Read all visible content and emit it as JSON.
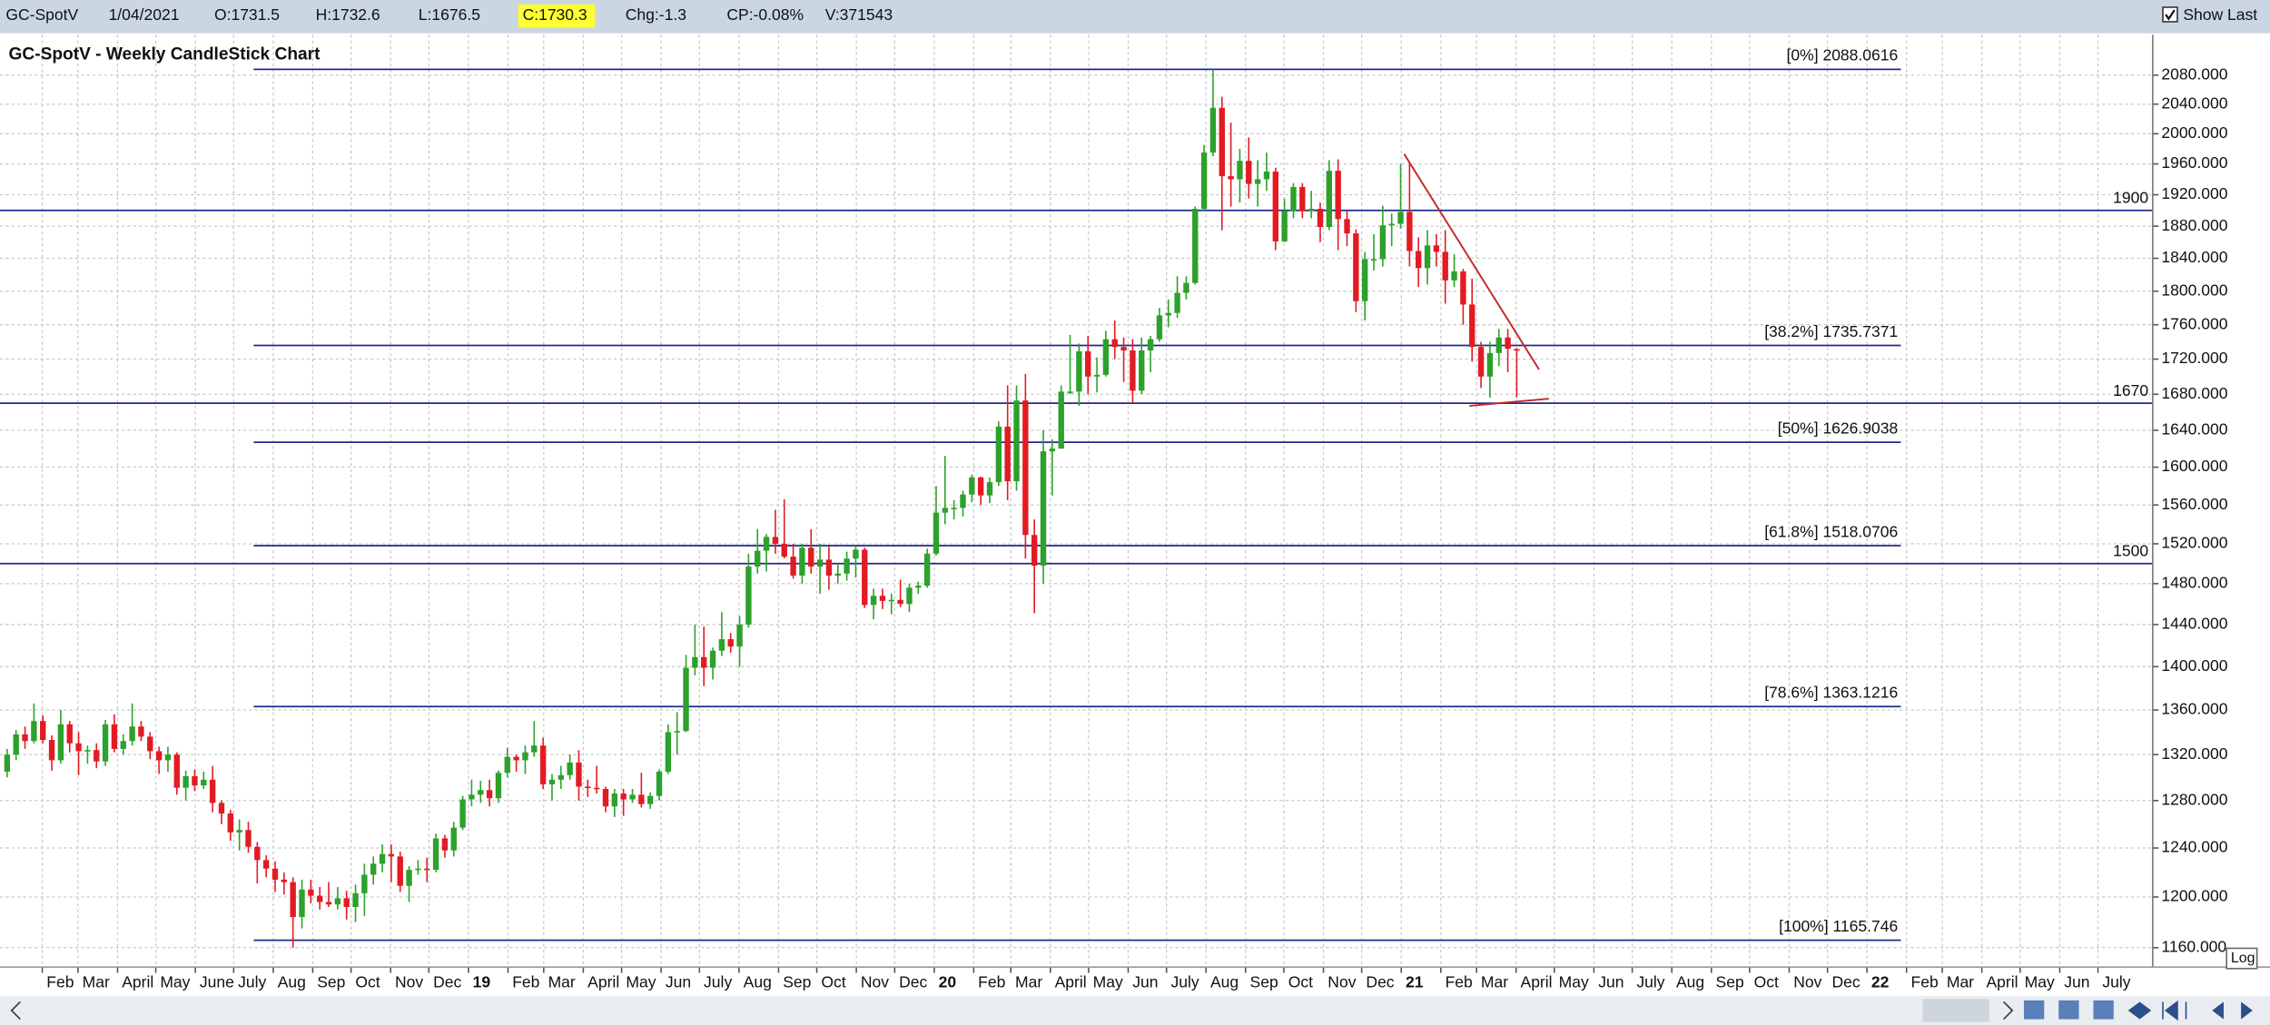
{
  "toolbar": {
    "symbol": "GC-SpotV",
    "date": "1/04/2021",
    "open": "O:1731.5",
    "high": "H:1732.6",
    "low": "L:1676.5",
    "close": "C:1730.3",
    "change": "Chg:-1.3",
    "change_percent": "CP:-0.08%",
    "volume": "V:371543",
    "show_last": "Show Last",
    "scale_mode": "Log"
  },
  "chart_data": {
    "type": "candlestick",
    "title": "GC-SpotV - Weekly CandleStick Chart",
    "log_scale": true,
    "grid": true,
    "colors": {
      "up": "#2ca12c",
      "down": "#e21b23",
      "level": "#1f2a8a",
      "level_text": "#3434a0",
      "trend": "#c0282d"
    },
    "ylim": [
      1145,
      2137
    ],
    "xlim": [
      -0.8,
      240.2
    ],
    "yticks": [
      {
        "value": 1160,
        "label": "1160.000"
      },
      {
        "value": 1200,
        "label": "1200.000"
      },
      {
        "value": 1240,
        "label": "1240.000"
      },
      {
        "value": 1280,
        "label": "1280.000"
      },
      {
        "value": 1320,
        "label": "1320.000"
      },
      {
        "value": 1360,
        "label": "1360.000"
      },
      {
        "value": 1400,
        "label": "1400.000"
      },
      {
        "value": 1440,
        "label": "1440.000"
      },
      {
        "value": 1480,
        "label": "1480.000"
      },
      {
        "value": 1520,
        "label": "1520.000"
      },
      {
        "value": 1560,
        "label": "1560.000"
      },
      {
        "value": 1600,
        "label": "1600.000"
      },
      {
        "value": 1640,
        "label": "1640.000"
      },
      {
        "value": 1680,
        "label": "1680.000"
      },
      {
        "value": 1720,
        "label": "1720.000"
      },
      {
        "value": 1760,
        "label": "1760.000"
      },
      {
        "value": 1800,
        "label": "1800.000"
      },
      {
        "value": 1840,
        "label": "1840.000"
      },
      {
        "value": 1880,
        "label": "1880.000"
      },
      {
        "value": 1920,
        "label": "1920.000"
      },
      {
        "value": 1960,
        "label": "1960.000"
      },
      {
        "value": 2000,
        "label": "2000.000"
      },
      {
        "value": 2040,
        "label": "2040.000"
      },
      {
        "value": 2080,
        "label": "2080.000"
      }
    ],
    "xticks": [
      {
        "value": 3.93,
        "label": "Feb"
      },
      {
        "value": 7.93,
        "label": "Mar"
      },
      {
        "value": 12.36,
        "label": "April"
      },
      {
        "value": 16.64,
        "label": "May"
      },
      {
        "value": 21.07,
        "label": "June"
      },
      {
        "value": 25.36,
        "label": "July"
      },
      {
        "value": 29.79,
        "label": "Aug"
      },
      {
        "value": 34.21,
        "label": "Sep"
      },
      {
        "value": 38.5,
        "label": "Oct"
      },
      {
        "value": 42.93,
        "label": "Nov"
      },
      {
        "value": 47.21,
        "label": "Dec"
      },
      {
        "value": 51.64,
        "label": "19"
      },
      {
        "value": 56.07,
        "label": "Feb"
      },
      {
        "value": 60.07,
        "label": "Mar"
      },
      {
        "value": 64.5,
        "label": "April"
      },
      {
        "value": 68.79,
        "label": "May"
      },
      {
        "value": 73.21,
        "label": "Jun"
      },
      {
        "value": 77.5,
        "label": "July"
      },
      {
        "value": 81.93,
        "label": "Aug"
      },
      {
        "value": 86.36,
        "label": "Sep"
      },
      {
        "value": 90.64,
        "label": "Oct"
      },
      {
        "value": 95.07,
        "label": "Nov"
      },
      {
        "value": 99.36,
        "label": "Dec"
      },
      {
        "value": 103.79,
        "label": "20"
      },
      {
        "value": 108.21,
        "label": "Feb"
      },
      {
        "value": 112.36,
        "label": "Mar"
      },
      {
        "value": 116.79,
        "label": "April"
      },
      {
        "value": 121.07,
        "label": "May"
      },
      {
        "value": 125.5,
        "label": "Jun"
      },
      {
        "value": 129.79,
        "label": "July"
      },
      {
        "value": 134.21,
        "label": "Aug"
      },
      {
        "value": 138.64,
        "label": "Sep"
      },
      {
        "value": 142.93,
        "label": "Oct"
      },
      {
        "value": 147.36,
        "label": "Nov"
      },
      {
        "value": 151.64,
        "label": "Dec"
      },
      {
        "value": 156.07,
        "label": "21"
      },
      {
        "value": 160.5,
        "label": "Feb"
      },
      {
        "value": 164.5,
        "label": "Mar"
      },
      {
        "value": 168.93,
        "label": "April"
      },
      {
        "value": 173.21,
        "label": "May"
      },
      {
        "value": 177.64,
        "label": "Jun"
      },
      {
        "value": 181.93,
        "label": "July"
      },
      {
        "value": 186.36,
        "label": "Aug"
      },
      {
        "value": 190.79,
        "label": "Sep"
      },
      {
        "value": 195.07,
        "label": "Oct"
      },
      {
        "value": 199.5,
        "label": "Nov"
      },
      {
        "value": 203.79,
        "label": "Dec"
      },
      {
        "value": 208.21,
        "label": "22"
      },
      {
        "value": 212.64,
        "label": "Feb"
      },
      {
        "value": 216.64,
        "label": "Mar"
      },
      {
        "value": 221.07,
        "label": "April"
      },
      {
        "value": 225.36,
        "label": "May"
      },
      {
        "value": 229.79,
        "label": "Jun"
      },
      {
        "value": 234.07,
        "label": "July"
      }
    ],
    "hlines": [
      1900,
      1670,
      1500
    ],
    "fibonacci": {
      "x": [
        27.6,
        212
      ],
      "levels": [
        {
          "value": 2088.0616,
          "label": "[0%] 2088.0616"
        },
        {
          "value": 1735.7371,
          "label": "[38.2%] 1735.7371"
        },
        {
          "value": 1626.9038,
          "label": "[50%] 1626.9038"
        },
        {
          "value": 1518.0706,
          "label": "[61.8%] 1518.0706"
        },
        {
          "value": 1363.1216,
          "label": "[78.6%] 1363.1216"
        },
        {
          "value": 1165.746,
          "label": "[100%] 1165.746"
        }
      ]
    },
    "trendlines": [
      {
        "x": [
          156.4,
          171.5
        ],
        "y": [
          1973,
          1708
        ]
      },
      {
        "x": [
          163.7,
          172.6
        ],
        "y": [
          1667,
          1675
        ]
      }
    ],
    "candles": [
      [
        1305,
        1325,
        1300,
        1320
      ],
      [
        1320,
        1342,
        1315,
        1338
      ],
      [
        1338,
        1345,
        1325,
        1332
      ],
      [
        1332,
        1366,
        1330,
        1350
      ],
      [
        1350,
        1355,
        1330,
        1333
      ],
      [
        1333,
        1337,
        1306,
        1315
      ],
      [
        1315,
        1360,
        1312,
        1347
      ],
      [
        1347,
        1350,
        1322,
        1330
      ],
      [
        1330,
        1340,
        1302,
        1323
      ],
      [
        1323,
        1328,
        1312,
        1324
      ],
      [
        1324,
        1330,
        1308,
        1314
      ],
      [
        1314,
        1351,
        1310,
        1347
      ],
      [
        1347,
        1356,
        1322,
        1325
      ],
      [
        1325,
        1338,
        1320,
        1332
      ],
      [
        1332,
        1366,
        1328,
        1345
      ],
      [
        1345,
        1350,
        1332,
        1336
      ],
      [
        1336,
        1340,
        1316,
        1323
      ],
      [
        1323,
        1327,
        1303,
        1315
      ],
      [
        1315,
        1327,
        1305,
        1320
      ],
      [
        1320,
        1322,
        1285,
        1291
      ],
      [
        1291,
        1306,
        1280,
        1301
      ],
      [
        1301,
        1307,
        1288,
        1293
      ],
      [
        1293,
        1305,
        1290,
        1298
      ],
      [
        1298,
        1310,
        1270,
        1278
      ],
      [
        1278,
        1280,
        1260,
        1269
      ],
      [
        1269,
        1272,
        1246,
        1253
      ],
      [
        1253,
        1264,
        1238,
        1255
      ],
      [
        1255,
        1262,
        1236,
        1241
      ],
      [
        1241,
        1245,
        1211,
        1230
      ],
      [
        1230,
        1234,
        1216,
        1223
      ],
      [
        1223,
        1229,
        1204,
        1214
      ],
      [
        1214,
        1220,
        1202,
        1212
      ],
      [
        1212,
        1216,
        1160,
        1184
      ],
      [
        1184,
        1214,
        1175,
        1206
      ],
      [
        1206,
        1214,
        1195,
        1201
      ],
      [
        1201,
        1208,
        1190,
        1196
      ],
      [
        1196,
        1212,
        1192,
        1194
      ],
      [
        1194,
        1208,
        1190,
        1199
      ],
      [
        1199,
        1205,
        1182,
        1192
      ],
      [
        1192,
        1210,
        1180,
        1203
      ],
      [
        1203,
        1227,
        1185,
        1218
      ],
      [
        1218,
        1233,
        1210,
        1227
      ],
      [
        1227,
        1243,
        1220,
        1235
      ],
      [
        1235,
        1243,
        1212,
        1233
      ],
      [
        1233,
        1237,
        1204,
        1209
      ],
      [
        1209,
        1225,
        1196,
        1222
      ],
      [
        1222,
        1230,
        1218,
        1223
      ],
      [
        1223,
        1232,
        1212,
        1222
      ],
      [
        1222,
        1252,
        1220,
        1248
      ],
      [
        1248,
        1251,
        1232,
        1238
      ],
      [
        1238,
        1262,
        1233,
        1257
      ],
      [
        1257,
        1284,
        1255,
        1281
      ],
      [
        1281,
        1298,
        1275,
        1285
      ],
      [
        1285,
        1297,
        1278,
        1289
      ],
      [
        1289,
        1298,
        1275,
        1282
      ],
      [
        1282,
        1306,
        1278,
        1304
      ],
      [
        1304,
        1326,
        1300,
        1318
      ],
      [
        1318,
        1320,
        1305,
        1315
      ],
      [
        1315,
        1328,
        1303,
        1322
      ],
      [
        1322,
        1350,
        1318,
        1328
      ],
      [
        1328,
        1335,
        1290,
        1294
      ],
      [
        1294,
        1303,
        1280,
        1298
      ],
      [
        1298,
        1310,
        1290,
        1302
      ],
      [
        1302,
        1320,
        1298,
        1313
      ],
      [
        1313,
        1324,
        1280,
        1292
      ],
      [
        1292,
        1298,
        1283,
        1291
      ],
      [
        1291,
        1310,
        1286,
        1290
      ],
      [
        1290,
        1292,
        1270,
        1275
      ],
      [
        1275,
        1290,
        1266,
        1286
      ],
      [
        1286,
        1290,
        1267,
        1281
      ],
      [
        1281,
        1290,
        1278,
        1285
      ],
      [
        1285,
        1304,
        1274,
        1277
      ],
      [
        1277,
        1287,
        1273,
        1284
      ],
      [
        1284,
        1307,
        1280,
        1305
      ],
      [
        1305,
        1347,
        1303,
        1340
      ],
      [
        1340,
        1358,
        1320,
        1341
      ],
      [
        1341,
        1411,
        1340,
        1399
      ],
      [
        1399,
        1440,
        1392,
        1409
      ],
      [
        1409,
        1438,
        1382,
        1399
      ],
      [
        1399,
        1418,
        1388,
        1415
      ],
      [
        1415,
        1452,
        1410,
        1426
      ],
      [
        1426,
        1432,
        1413,
        1419
      ],
      [
        1419,
        1448,
        1400,
        1440
      ],
      [
        1440,
        1510,
        1437,
        1497
      ],
      [
        1497,
        1535,
        1490,
        1513
      ],
      [
        1513,
        1530,
        1492,
        1527
      ],
      [
        1527,
        1555,
        1510,
        1520
      ],
      [
        1520,
        1566,
        1505,
        1507
      ],
      [
        1507,
        1520,
        1485,
        1488
      ],
      [
        1488,
        1520,
        1480,
        1516
      ],
      [
        1516,
        1535,
        1490,
        1497
      ],
      [
        1497,
        1520,
        1470,
        1504
      ],
      [
        1504,
        1517,
        1474,
        1488
      ],
      [
        1488,
        1500,
        1480,
        1490
      ],
      [
        1490,
        1512,
        1483,
        1505
      ],
      [
        1505,
        1518,
        1486,
        1514
      ],
      [
        1514,
        1516,
        1456,
        1459
      ],
      [
        1459,
        1475,
        1445,
        1468
      ],
      [
        1468,
        1475,
        1455,
        1463
      ],
      [
        1463,
        1470,
        1450,
        1464
      ],
      [
        1464,
        1484,
        1457,
        1460
      ],
      [
        1460,
        1480,
        1452,
        1476
      ],
      [
        1476,
        1482,
        1470,
        1478
      ],
      [
        1478,
        1515,
        1476,
        1510
      ],
      [
        1510,
        1580,
        1508,
        1552
      ],
      [
        1552,
        1612,
        1540,
        1557
      ],
      [
        1557,
        1565,
        1545,
        1557
      ],
      [
        1557,
        1575,
        1548,
        1571
      ],
      [
        1571,
        1592,
        1563,
        1589
      ],
      [
        1589,
        1590,
        1560,
        1570
      ],
      [
        1570,
        1589,
        1562,
        1584
      ],
      [
        1584,
        1650,
        1580,
        1644
      ],
      [
        1644,
        1690,
        1565,
        1585
      ],
      [
        1585,
        1690,
        1575,
        1673
      ],
      [
        1673,
        1703,
        1505,
        1529
      ],
      [
        1529,
        1545,
        1451,
        1498
      ],
      [
        1498,
        1640,
        1480,
        1617
      ],
      [
        1617,
        1630,
        1570,
        1620
      ],
      [
        1620,
        1690,
        1620,
        1683
      ],
      [
        1683,
        1748,
        1680,
        1683
      ],
      [
        1683,
        1738,
        1667,
        1729
      ],
      [
        1729,
        1747,
        1680,
        1700
      ],
      [
        1700,
        1722,
        1682,
        1702
      ],
      [
        1702,
        1753,
        1700,
        1743
      ],
      [
        1743,
        1765,
        1720,
        1734
      ],
      [
        1734,
        1745,
        1694,
        1730
      ],
      [
        1730,
        1743,
        1670,
        1684
      ],
      [
        1684,
        1745,
        1680,
        1730
      ],
      [
        1730,
        1747,
        1705,
        1743
      ],
      [
        1743,
        1780,
        1740,
        1771
      ],
      [
        1771,
        1790,
        1757,
        1774
      ],
      [
        1774,
        1818,
        1768,
        1798
      ],
      [
        1798,
        1818,
        1790,
        1810
      ],
      [
        1810,
        1905,
        1808,
        1902
      ],
      [
        1902,
        1985,
        1900,
        1975
      ],
      [
        1975,
        2088,
        1970,
        2035
      ],
      [
        2035,
        2050,
        1875,
        1944
      ],
      [
        1944,
        2015,
        1905,
        1940
      ],
      [
        1940,
        1980,
        1910,
        1964
      ],
      [
        1964,
        1995,
        1915,
        1934
      ],
      [
        1934,
        1965,
        1905,
        1940
      ],
      [
        1940,
        1975,
        1925,
        1950
      ],
      [
        1950,
        1955,
        1850,
        1861
      ],
      [
        1861,
        1915,
        1860,
        1899
      ],
      [
        1899,
        1935,
        1890,
        1930
      ],
      [
        1930,
        1935,
        1890,
        1899
      ],
      [
        1899,
        1925,
        1890,
        1902
      ],
      [
        1902,
        1910,
        1860,
        1879
      ],
      [
        1879,
        1965,
        1875,
        1951
      ],
      [
        1951,
        1966,
        1850,
        1889
      ],
      [
        1889,
        1900,
        1855,
        1871
      ],
      [
        1871,
        1876,
        1775,
        1788
      ],
      [
        1788,
        1848,
        1765,
        1839
      ],
      [
        1839,
        1870,
        1825,
        1839
      ],
      [
        1839,
        1906,
        1830,
        1881
      ],
      [
        1881,
        1896,
        1855,
        1883
      ],
      [
        1883,
        1960,
        1877,
        1898
      ],
      [
        1898,
        1960,
        1830,
        1849
      ],
      [
        1849,
        1866,
        1805,
        1828
      ],
      [
        1828,
        1875,
        1808,
        1856
      ],
      [
        1856,
        1870,
        1830,
        1848
      ],
      [
        1848,
        1875,
        1785,
        1813
      ],
      [
        1813,
        1845,
        1805,
        1824
      ],
      [
        1824,
        1827,
        1760,
        1784
      ],
      [
        1784,
        1815,
        1717,
        1734
      ],
      [
        1734,
        1740,
        1687,
        1700
      ],
      [
        1700,
        1740,
        1676,
        1727
      ],
      [
        1727,
        1755,
        1712,
        1745
      ],
      [
        1745,
        1755,
        1705,
        1732
      ],
      [
        1731.5,
        1732.6,
        1676.5,
        1730.3
      ]
    ]
  }
}
